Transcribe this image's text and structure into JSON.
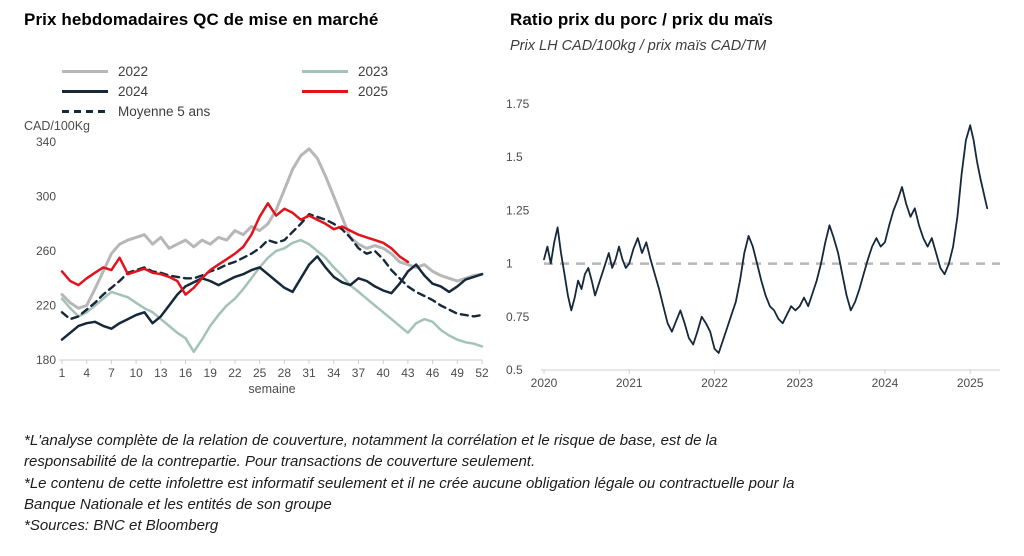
{
  "footnotes": {
    "paragraphs": [
      "*L'analyse complète de la relation de couverture, notamment la corrélation et le risque de base, est de la responsabilité de la contrepartie. Pour transactions de couverture seulement.",
      "*Le contenu de cette infolettre est informatif seulement et il ne crée aucune obligation légale ou contractuelle pour la Banque Nationale et les entités de son groupe",
      "*Sources: BNC et Bloomberg"
    ]
  },
  "chart_data": [
    {
      "type": "line",
      "title": "Prix hebdomadaires QC de mise en marché",
      "ylabel": "CAD/100Kg",
      "xlabel": "semaine",
      "xlim": [
        1,
        52
      ],
      "ylim": [
        180,
        340
      ],
      "x_ticks": [
        1,
        4,
        7,
        10,
        13,
        16,
        19,
        22,
        25,
        28,
        31,
        34,
        37,
        40,
        43,
        46,
        49,
        52
      ],
      "y_ticks": [
        180,
        220,
        260,
        300,
        340
      ],
      "grid": false,
      "legend_position": "top",
      "draw_order": [
        0,
        1,
        2,
        4,
        3
      ],
      "series": [
        {
          "name": "2022",
          "color": "#b7b7b7",
          "width": 3,
          "dash": null,
          "x_start": 1,
          "values": [
            228,
            222,
            218,
            220,
            232,
            245,
            258,
            265,
            268,
            270,
            272,
            265,
            270,
            262,
            265,
            268,
            263,
            268,
            265,
            270,
            268,
            275,
            272,
            278,
            275,
            280,
            290,
            305,
            320,
            330,
            335,
            328,
            315,
            300,
            285,
            270,
            265,
            262,
            264,
            262,
            258,
            252,
            250,
            248,
            250,
            245,
            242,
            240,
            238,
            240,
            242,
            243
          ]
        },
        {
          "name": "2023",
          "color": "#a3c2ba",
          "width": 2.5,
          "dash": null,
          "x_start": 1,
          "values": [
            225,
            218,
            212,
            215,
            220,
            225,
            230,
            228,
            226,
            222,
            218,
            215,
            210,
            205,
            200,
            196,
            186,
            195,
            205,
            213,
            220,
            225,
            232,
            240,
            248,
            255,
            260,
            262,
            266,
            268,
            265,
            260,
            255,
            248,
            242,
            235,
            230,
            225,
            220,
            215,
            210,
            205,
            200,
            207,
            210,
            208,
            202,
            198,
            195,
            193,
            192,
            190
          ]
        },
        {
          "name": "2024",
          "color": "#15293b",
          "width": 2.5,
          "dash": null,
          "x_start": 1,
          "values": [
            195,
            200,
            205,
            207,
            208,
            205,
            203,
            207,
            210,
            213,
            215,
            207,
            212,
            220,
            228,
            234,
            237,
            240,
            238,
            235,
            238,
            241,
            243,
            246,
            248,
            243,
            238,
            233,
            230,
            240,
            250,
            256,
            248,
            241,
            237,
            235,
            240,
            238,
            234,
            231,
            229,
            236,
            245,
            250,
            242,
            236,
            234,
            230,
            234,
            239,
            241,
            243
          ]
        },
        {
          "name": "2025",
          "color": "#e2131c",
          "width": 2.5,
          "dash": null,
          "x_start": 1,
          "values": [
            245,
            238,
            235,
            240,
            244,
            248,
            246,
            255,
            243,
            245,
            247,
            244,
            243,
            241,
            238,
            228,
            233,
            240,
            246,
            250,
            254,
            258,
            263,
            272,
            285,
            295,
            286,
            291,
            288,
            283,
            286,
            283,
            280,
            276,
            278,
            275,
            272,
            270,
            268,
            266,
            262,
            256,
            252
          ]
        },
        {
          "name": "Moyenne 5 ans",
          "color": "#15293b",
          "width": 2.4,
          "dash": "7,5",
          "x_start": 1,
          "values": [
            215,
            210,
            212,
            217,
            222,
            228,
            233,
            238,
            244,
            246,
            248,
            245,
            244,
            242,
            241,
            240,
            240,
            242,
            245,
            247,
            250,
            252,
            255,
            258,
            262,
            268,
            266,
            268,
            274,
            280,
            287,
            285,
            283,
            280,
            276,
            270,
            262,
            258,
            260,
            254,
            246,
            240,
            234,
            230,
            227,
            224,
            220,
            217,
            214,
            213,
            212,
            213
          ]
        }
      ]
    },
    {
      "type": "line",
      "title": "Ratio prix du porc / prix du maïs",
      "subtitle": "Prix LH CAD/100kg / prix maïs CAD/TM",
      "xlim": [
        2020,
        2025.35
      ],
      "ylim": [
        0.5,
        1.75
      ],
      "x_ticks": [
        2020,
        2021,
        2022,
        2023,
        2024,
        2025
      ],
      "y_ticks": [
        0.5,
        0.75,
        1,
        1.25,
        1.5,
        1.75
      ],
      "grid": false,
      "reference_line": {
        "y": 1,
        "color": "#b8b8b8",
        "dash": "9,7",
        "width": 2.5
      },
      "series": [
        {
          "name": "ratio",
          "color": "#15293b",
          "width": 1.8,
          "dash": null,
          "x": [
            2020.0,
            2020.04,
            2020.08,
            2020.12,
            2020.16,
            2020.2,
            2020.24,
            2020.28,
            2020.32,
            2020.36,
            2020.4,
            2020.44,
            2020.48,
            2020.52,
            2020.56,
            2020.6,
            2020.64,
            2020.68,
            2020.72,
            2020.76,
            2020.8,
            2020.84,
            2020.88,
            2020.92,
            2020.96,
            2021.0,
            2021.05,
            2021.1,
            2021.15,
            2021.2,
            2021.25,
            2021.3,
            2021.35,
            2021.4,
            2021.45,
            2021.5,
            2021.55,
            2021.6,
            2021.65,
            2021.7,
            2021.75,
            2021.8,
            2021.85,
            2021.9,
            2021.95,
            2022.0,
            2022.05,
            2022.1,
            2022.15,
            2022.2,
            2022.25,
            2022.3,
            2022.35,
            2022.4,
            2022.45,
            2022.5,
            2022.55,
            2022.6,
            2022.65,
            2022.7,
            2022.75,
            2022.8,
            2022.85,
            2022.9,
            2022.95,
            2023.0,
            2023.05,
            2023.1,
            2023.15,
            2023.2,
            2023.25,
            2023.3,
            2023.35,
            2023.4,
            2023.45,
            2023.5,
            2023.55,
            2023.6,
            2023.65,
            2023.7,
            2023.75,
            2023.8,
            2023.85,
            2023.9,
            2023.95,
            2024.0,
            2024.05,
            2024.1,
            2024.15,
            2024.2,
            2024.25,
            2024.3,
            2024.35,
            2024.4,
            2024.45,
            2024.5,
            2024.55,
            2024.6,
            2024.65,
            2024.7,
            2024.75,
            2024.8,
            2024.85,
            2024.9,
            2024.95,
            2025.0,
            2025.04,
            2025.08,
            2025.12,
            2025.16,
            2025.2
          ],
          "y": [
            1.02,
            1.08,
            1.0,
            1.1,
            1.17,
            1.05,
            0.95,
            0.85,
            0.78,
            0.84,
            0.92,
            0.88,
            0.95,
            0.98,
            0.92,
            0.85,
            0.9,
            0.95,
            1.0,
            1.05,
            0.98,
            1.02,
            1.08,
            1.02,
            0.98,
            1.0,
            1.07,
            1.12,
            1.05,
            1.1,
            1.02,
            0.95,
            0.88,
            0.8,
            0.72,
            0.68,
            0.73,
            0.78,
            0.72,
            0.65,
            0.62,
            0.68,
            0.75,
            0.72,
            0.68,
            0.6,
            0.58,
            0.64,
            0.7,
            0.76,
            0.82,
            0.92,
            1.05,
            1.13,
            1.08,
            1.0,
            0.92,
            0.85,
            0.8,
            0.78,
            0.74,
            0.72,
            0.76,
            0.8,
            0.78,
            0.8,
            0.84,
            0.8,
            0.86,
            0.92,
            1.0,
            1.1,
            1.18,
            1.12,
            1.05,
            0.95,
            0.85,
            0.78,
            0.82,
            0.88,
            0.95,
            1.02,
            1.08,
            1.12,
            1.08,
            1.1,
            1.18,
            1.25,
            1.3,
            1.36,
            1.28,
            1.22,
            1.26,
            1.18,
            1.12,
            1.08,
            1.12,
            1.05,
            0.98,
            0.95,
            1.0,
            1.08,
            1.22,
            1.42,
            1.58,
            1.65,
            1.58,
            1.48,
            1.4,
            1.33,
            1.26
          ]
        }
      ]
    }
  ]
}
